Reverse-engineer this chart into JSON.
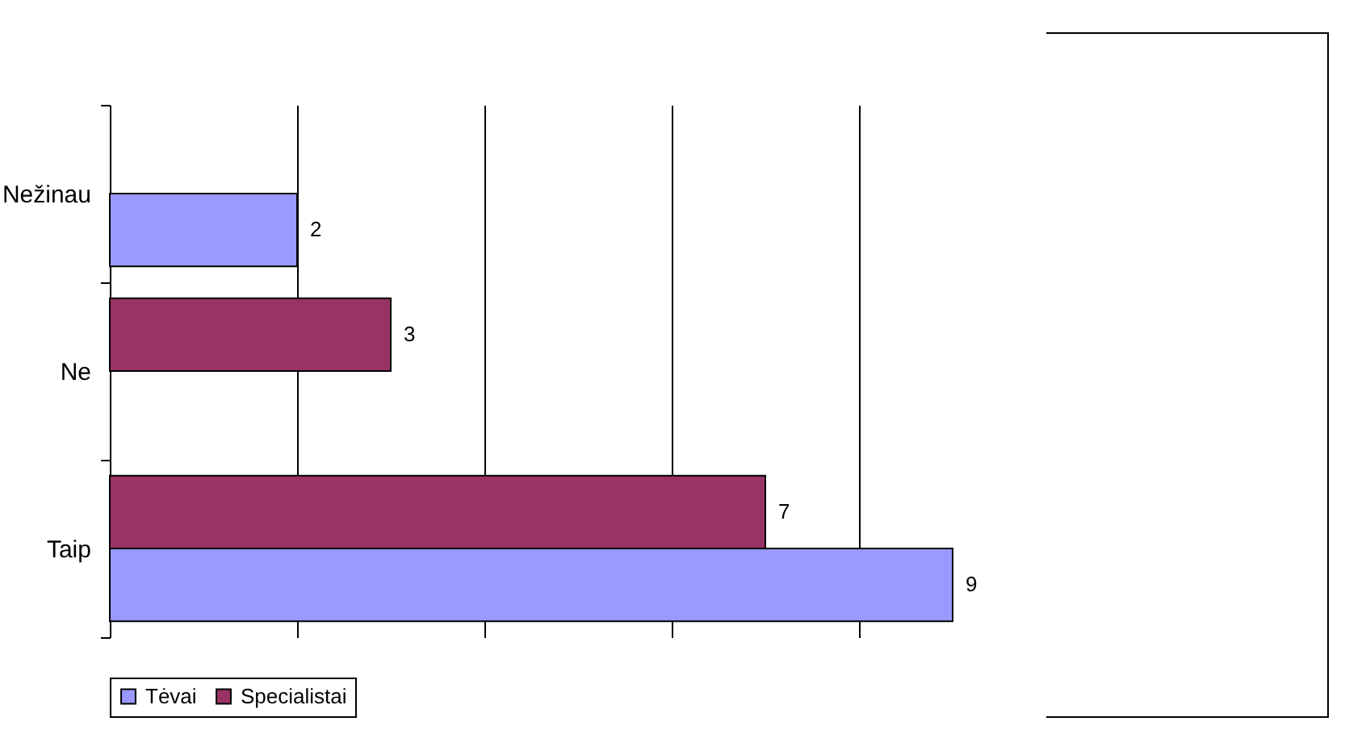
{
  "chart_data": {
    "type": "bar",
    "orientation": "horizontal",
    "categories": [
      "Nežinau",
      "Ne",
      "Taip"
    ],
    "series": [
      {
        "name": "Tėvai",
        "color": "#9999ff",
        "values": [
          2,
          null,
          9
        ]
      },
      {
        "name": "Specialistai",
        "color": "#993366",
        "values": [
          null,
          3,
          7
        ]
      }
    ],
    "xlim": [
      0,
      10
    ],
    "xticks": [
      {
        "value": 0,
        "label": null
      },
      {
        "value": 2,
        "label": null
      },
      {
        "value": 4,
        "label": null
      },
      {
        "value": 6,
        "label": null
      },
      {
        "value": 8,
        "label": null
      },
      {
        "value": 10,
        "label": null
      }
    ],
    "grid": "x",
    "legend": "bottom",
    "tick_labels": "y",
    "data_labels": true
  }
}
